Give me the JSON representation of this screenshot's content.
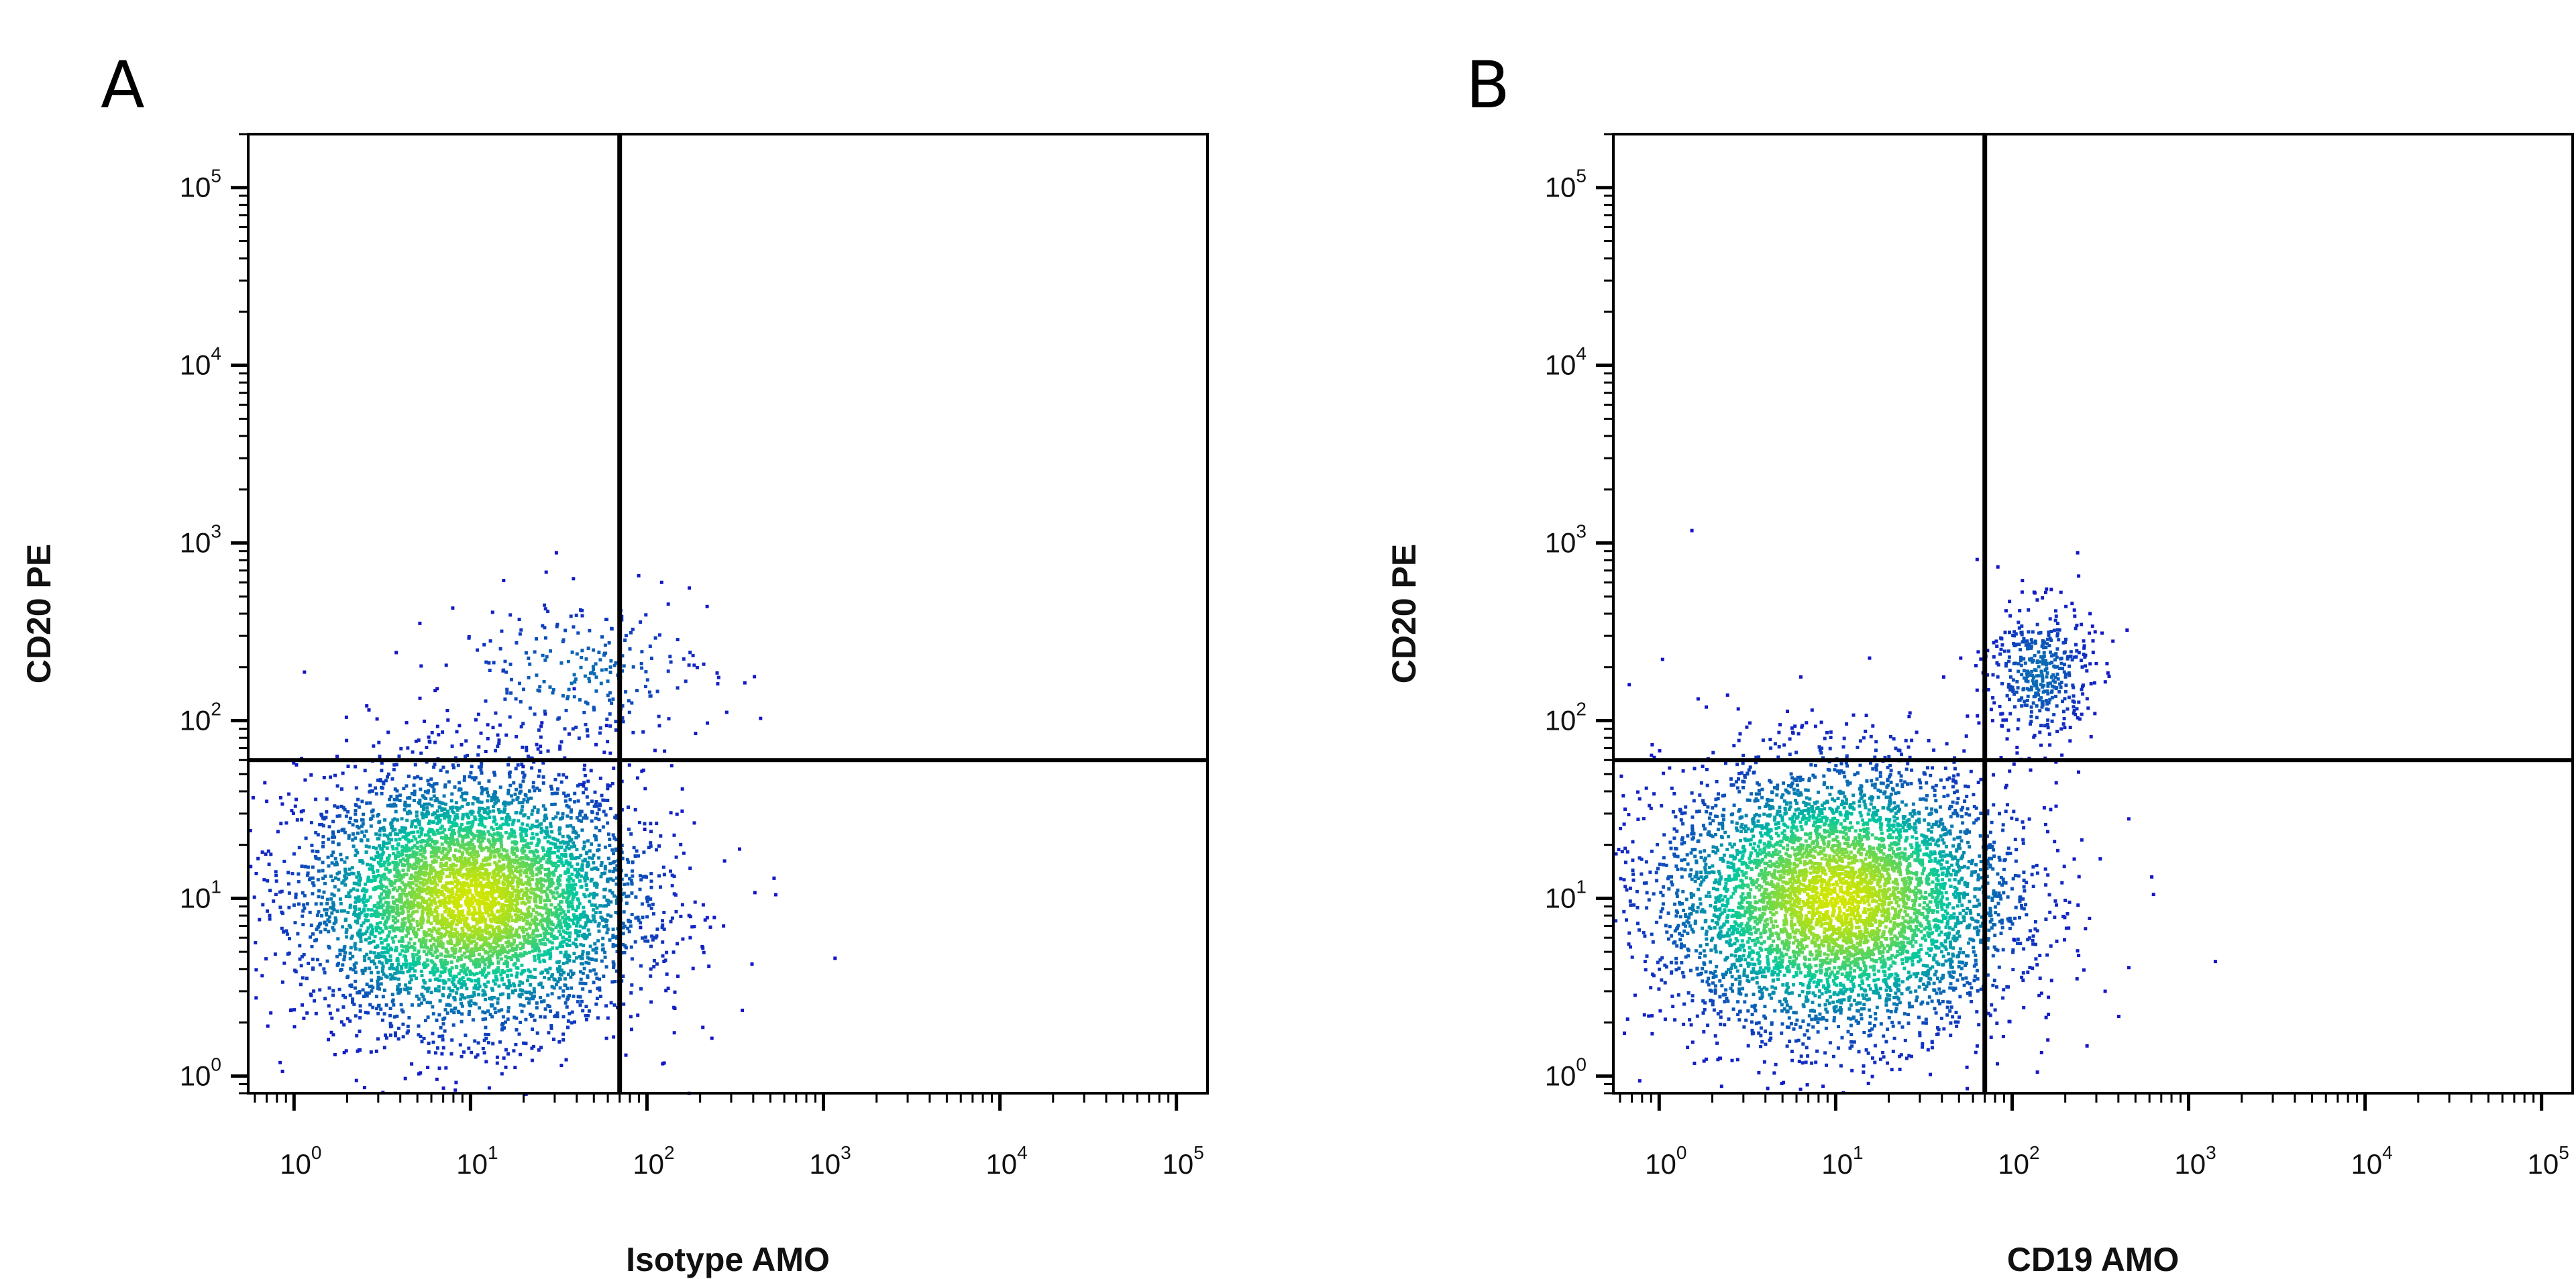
{
  "chart_data": [
    {
      "type": "scatter",
      "panel_label": "A",
      "xlabel": "Isotype AMO",
      "ylabel": "CD20 PE",
      "x_scale": "log",
      "y_scale": "log",
      "xlim": [
        0.55,
        150000
      ],
      "ylim": [
        0.8,
        200000
      ],
      "x_ticks": [
        {
          "base": "10",
          "exp": "0"
        },
        {
          "base": "10",
          "exp": "1"
        },
        {
          "base": "10",
          "exp": "2"
        },
        {
          "base": "10",
          "exp": "3"
        },
        {
          "base": "10",
          "exp": "4"
        },
        {
          "base": "10",
          "exp": "5"
        }
      ],
      "y_ticks": [
        {
          "base": "10",
          "exp": "0"
        },
        {
          "base": "10",
          "exp": "1"
        },
        {
          "base": "10",
          "exp": "2"
        },
        {
          "base": "10",
          "exp": "3"
        },
        {
          "base": "10",
          "exp": "4"
        },
        {
          "base": "10",
          "exp": "5"
        }
      ],
      "gate": {
        "x": 70,
        "y": 60
      },
      "populations": [
        {
          "center": [
            10,
            10
          ],
          "spread": [
            0.48,
            0.36
          ],
          "count": 5200
        },
        {
          "center": [
            40,
            190
          ],
          "spread": [
            0.38,
            0.22
          ],
          "count": 260
        }
      ],
      "outliers": [
        [
          400,
          11
        ],
        [
          95,
          25
        ],
        [
          90,
          7
        ],
        [
          30,
          900
        ],
        [
          170,
          570
        ]
      ],
      "colors": {
        "low": "#1414c8",
        "mid": "#00c8a0",
        "high": "#d2e600",
        "axis": "#000000"
      }
    },
    {
      "type": "scatter",
      "panel_label": "B",
      "xlabel": "CD19 AMO",
      "ylabel": "CD20 PE",
      "x_scale": "log",
      "y_scale": "log",
      "xlim": [
        0.55,
        150000
      ],
      "ylim": [
        0.8,
        200000
      ],
      "x_ticks": [
        {
          "base": "10",
          "exp": "0"
        },
        {
          "base": "10",
          "exp": "1"
        },
        {
          "base": "10",
          "exp": "2"
        },
        {
          "base": "10",
          "exp": "3"
        },
        {
          "base": "10",
          "exp": "4"
        },
        {
          "base": "10",
          "exp": "5"
        }
      ],
      "y_ticks": [
        {
          "base": "10",
          "exp": "0"
        },
        {
          "base": "10",
          "exp": "1"
        },
        {
          "base": "10",
          "exp": "2"
        },
        {
          "base": "10",
          "exp": "3"
        },
        {
          "base": "10",
          "exp": "4"
        },
        {
          "base": "10",
          "exp": "5"
        }
      ],
      "gate": {
        "x": 70,
        "y": 60
      },
      "populations": [
        {
          "center": [
            10,
            10
          ],
          "spread": [
            0.5,
            0.38
          ],
          "count": 5200
        },
        {
          "center": [
            140,
            190
          ],
          "spread": [
            0.15,
            0.2
          ],
          "count": 420
        }
      ],
      "outliers": [
        [
          1.5,
          1200
        ],
        [
          220,
          17
        ],
        [
          100,
          6
        ],
        [
          50,
          230
        ],
        [
          230,
          900
        ]
      ],
      "colors": {
        "low": "#1414c8",
        "mid": "#00c8a0",
        "high": "#d2e600",
        "axis": "#000000"
      }
    }
  ]
}
